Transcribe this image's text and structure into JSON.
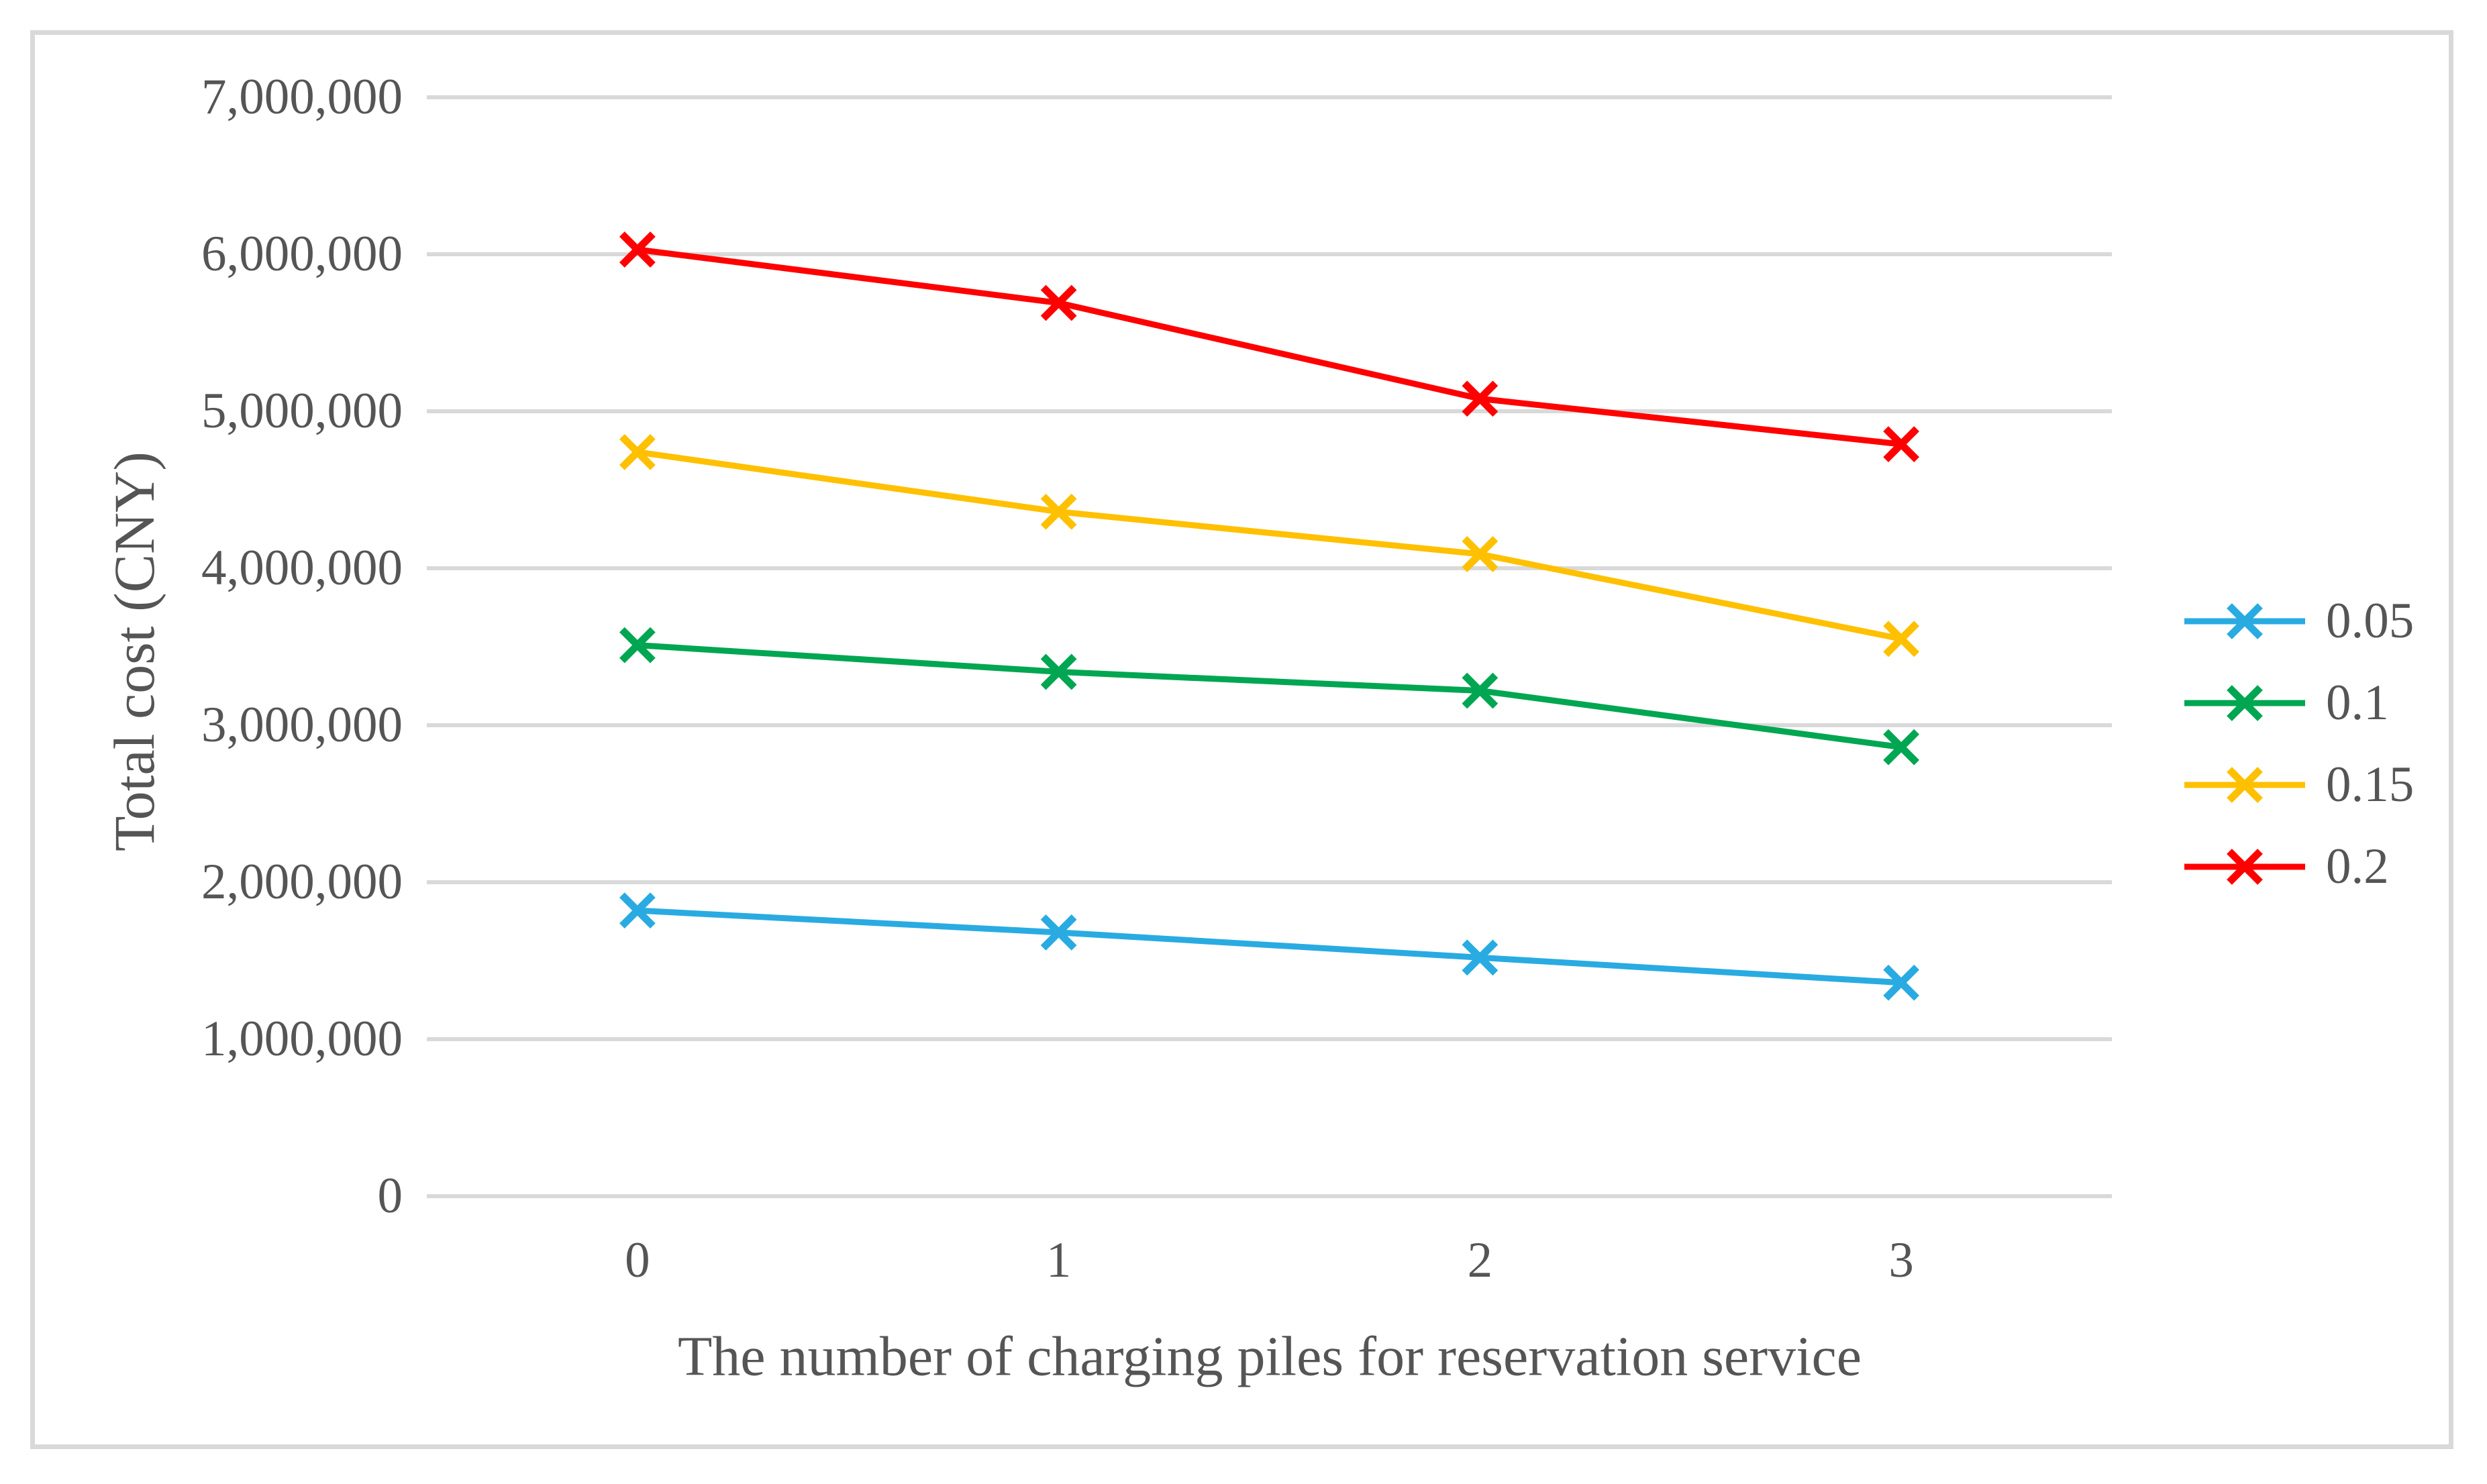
{
  "figure": {
    "background_color": "#FFFFFF",
    "frame_color": "#D9D9D9",
    "grid_color": "#D9D9D9",
    "text_color": "#555555"
  },
  "chart_data": {
    "type": "line",
    "title": "",
    "xlabel": "The number of charging piles for reservation service",
    "ylabel": "Total cost (CNY)",
    "categories": [
      0,
      1,
      2,
      3
    ],
    "xtick_labels": [
      "0",
      "1",
      "2",
      "3"
    ],
    "ytick_labels": [
      "0",
      "1,000,000",
      "2,000,000",
      "3,000,000",
      "4,000,000",
      "5,000,000",
      "6,000,000",
      "7,000,000"
    ],
    "ylim": [
      0,
      7000000
    ],
    "ytick_step": 1000000,
    "grid": "horizontal",
    "marker": "x",
    "legend_position": "right",
    "series": [
      {
        "name": "0.05",
        "color": "#29ABE2",
        "values": [
          1820000,
          1680000,
          1520000,
          1360000
        ]
      },
      {
        "name": "0.1",
        "color": "#00A651",
        "values": [
          3510000,
          3340000,
          3220000,
          2860000
        ]
      },
      {
        "name": "0.15",
        "color": "#FFC000",
        "values": [
          4740000,
          4360000,
          4090000,
          3550000
        ]
      },
      {
        "name": "0.2",
        "color": "#FF0000",
        "values": [
          6030000,
          5690000,
          5080000,
          4790000
        ]
      }
    ]
  }
}
